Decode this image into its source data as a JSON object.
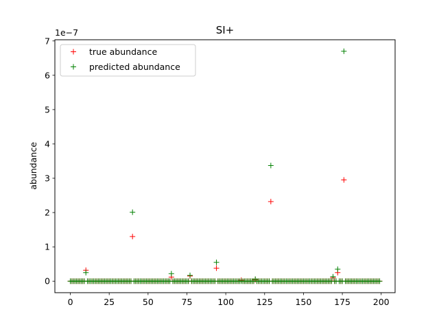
{
  "chart_data": {
    "type": "scatter",
    "title": "SI+",
    "xlabel": "",
    "ylabel": "abundance",
    "y_offset_label": "1e−7",
    "xlim": [
      -9.95,
      208.95
    ],
    "ylim": [
      -0.335,
      7.035
    ],
    "xticks": [
      0,
      25,
      50,
      75,
      100,
      125,
      150,
      175,
      200
    ],
    "xtick_labels": [
      "0",
      "25",
      "50",
      "75",
      "100",
      "125",
      "150",
      "175",
      "200"
    ],
    "yticks": [
      0,
      1,
      2,
      3,
      4,
      5,
      6,
      7
    ],
    "ytick_labels": [
      "0",
      "1",
      "2",
      "3",
      "4",
      "5",
      "6",
      "7"
    ],
    "grid": false,
    "legend_position": "upper-left",
    "marker": "+",
    "n_points": 200,
    "series": [
      {
        "name": "true abundance",
        "color": "#ff0000",
        "nonzero": {
          "10": 0.32,
          "40": 1.3,
          "65": 0.12,
          "77": 0.15,
          "94": 0.38,
          "110": 0.03,
          "119": 0.04,
          "129": 2.32,
          "169": 0.1,
          "172": 0.25,
          "176": 2.95
        }
      },
      {
        "name": "predicted abundance",
        "color": "#008000",
        "nonzero": {
          "10": 0.25,
          "40": 2.01,
          "65": 0.22,
          "77": 0.17,
          "94": 0.55,
          "119": 0.06,
          "129": 3.37,
          "169": 0.13,
          "172": 0.35,
          "176": 6.7
        }
      }
    ]
  }
}
